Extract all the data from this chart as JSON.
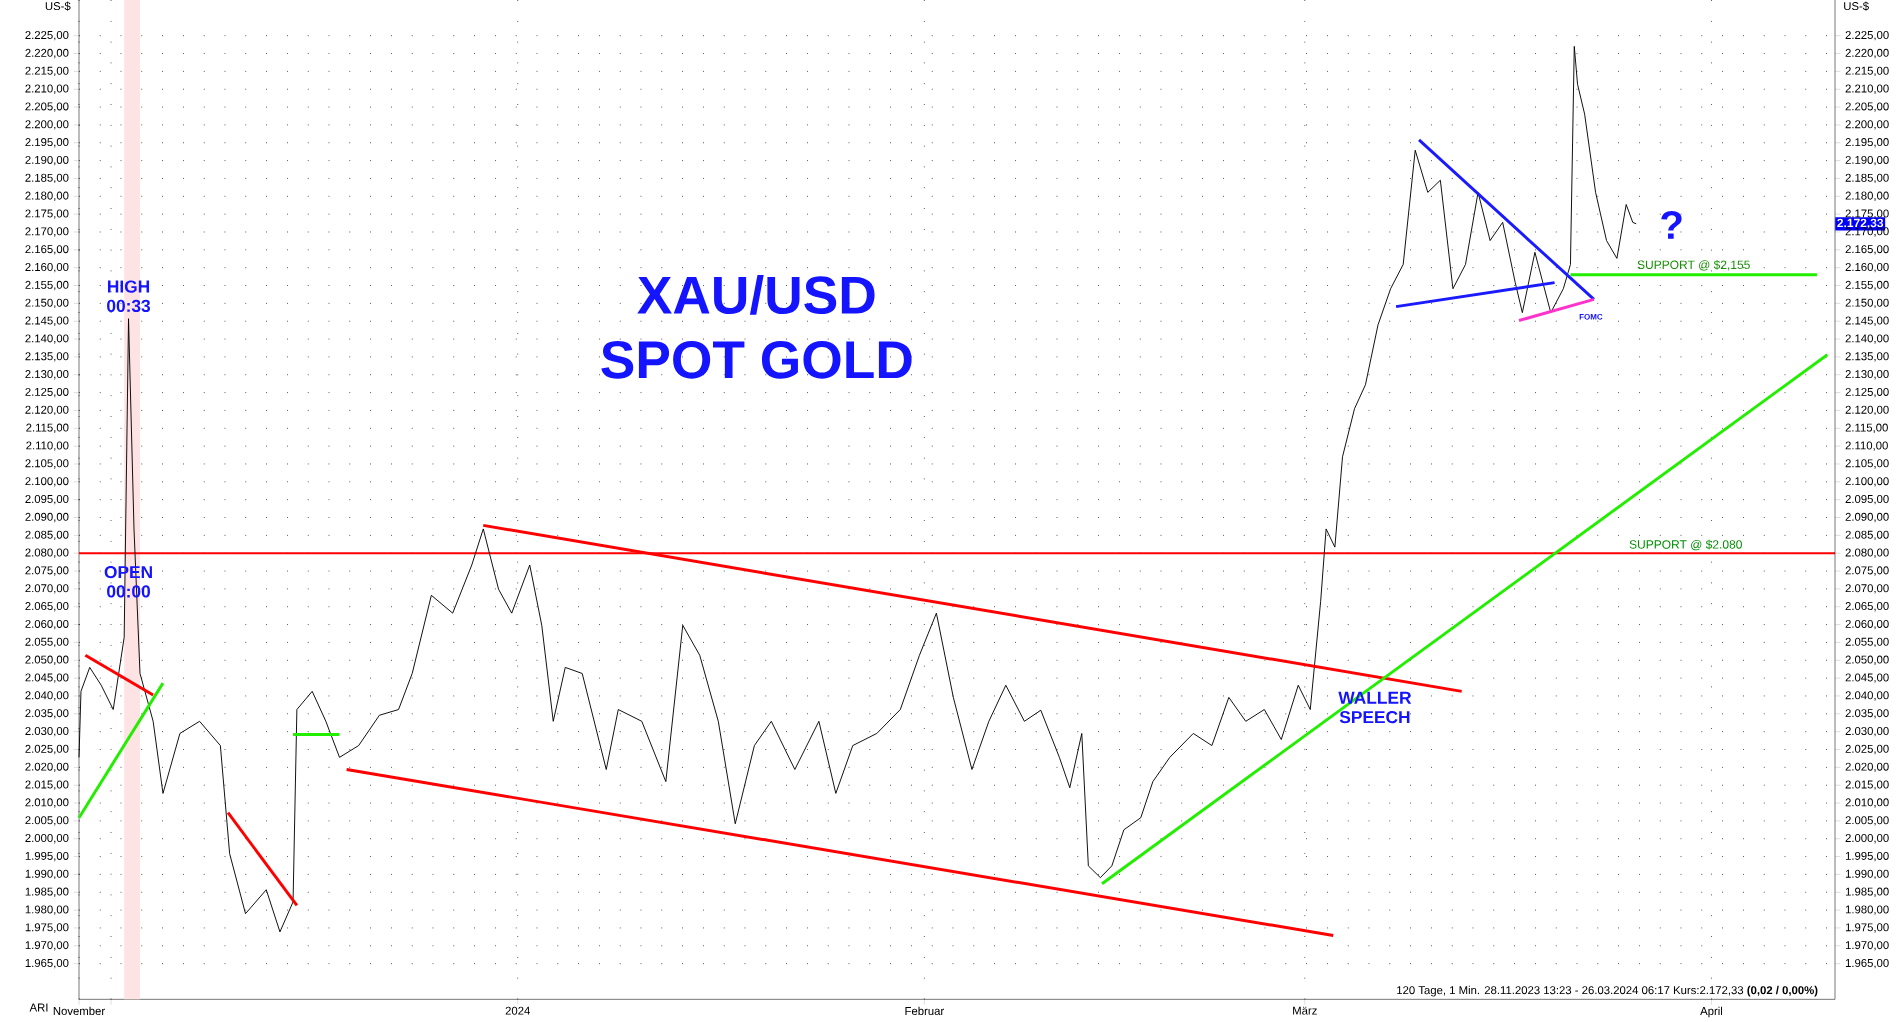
{
  "chart_data": {
    "type": "line",
    "title": "XAU/USD",
    "subtitle": "SPOT GOLD",
    "ylabel": "US-$",
    "y2label": "US-$",
    "xlim": [
      "2023-11-28T13:23",
      "2024-04-10T10:00"
    ],
    "ylim": [
      1955,
      2235
    ],
    "y2lim": [
      1955,
      2235
    ],
    "xticks": [
      {
        "value": "2023-11-28T13:23",
        "label": "November"
      },
      {
        "value": "2023-12-01",
        "label": null
      },
      {
        "value": "2024-01-01",
        "label": "2024"
      },
      {
        "value": "2024-02-01",
        "label": "Februar"
      },
      {
        "value": "2024-03-01",
        "label": "März"
      },
      {
        "value": "2024-04-01",
        "label": "April"
      }
    ],
    "yticks": [
      {
        "value": 1965,
        "label": "1.965,00"
      },
      {
        "value": 1970,
        "label": "1.970,00"
      },
      {
        "value": 1975,
        "label": "1.975,00"
      },
      {
        "value": 1980,
        "label": "1.980,00"
      },
      {
        "value": 1985,
        "label": "1.985,00"
      },
      {
        "value": 1990,
        "label": "1.990,00"
      },
      {
        "value": 1995,
        "label": "1.995,00"
      },
      {
        "value": 2000,
        "label": "2.000,00"
      },
      {
        "value": 2005,
        "label": "2.005,00"
      },
      {
        "value": 2010,
        "label": "2.010,00"
      },
      {
        "value": 2015,
        "label": "2.015,00"
      },
      {
        "value": 2020,
        "label": "2.020,00"
      },
      {
        "value": 2025,
        "label": "2.025,00"
      },
      {
        "value": 2030,
        "label": "2.030,00"
      },
      {
        "value": 2035,
        "label": "2.035,00"
      },
      {
        "value": 2040,
        "label": "2.040,00"
      },
      {
        "value": 2045,
        "label": "2.045,00"
      },
      {
        "value": 2050,
        "label": "2.050,00"
      },
      {
        "value": 2055,
        "label": "2.055,00"
      },
      {
        "value": 2060,
        "label": "2.060,00"
      },
      {
        "value": 2065,
        "label": "2.065,00"
      },
      {
        "value": 2070,
        "label": "2.070,00"
      },
      {
        "value": 2075,
        "label": "2.075,00"
      },
      {
        "value": 2080,
        "label": "2.080,00"
      },
      {
        "value": 2085,
        "label": "2.085,00"
      },
      {
        "value": 2090,
        "label": "2.090,00"
      },
      {
        "value": 2095,
        "label": "2.095,00"
      },
      {
        "value": 2100,
        "label": "2.100,00"
      },
      {
        "value": 2105,
        "label": "2.105,00"
      },
      {
        "value": 2110,
        "label": "2.110,00"
      },
      {
        "value": 2115,
        "label": "2.115,00"
      },
      {
        "value": 2120,
        "label": "2.120,00"
      },
      {
        "value": 2125,
        "label": "2.125,00"
      },
      {
        "value": 2130,
        "label": "2.130,00"
      },
      {
        "value": 2135,
        "label": "2.135,00"
      },
      {
        "value": 2140,
        "label": "2.140,00"
      },
      {
        "value": 2145,
        "label": "2.145,00"
      },
      {
        "value": 2150,
        "label": "2.150,00"
      },
      {
        "value": 2155,
        "label": "2.155,00"
      },
      {
        "value": 2160,
        "label": "2.160,00"
      },
      {
        "value": 2165,
        "label": "2.165,00"
      },
      {
        "value": 2170,
        "label": "2.170,00"
      },
      {
        "value": 2175,
        "label": "2.175,00"
      },
      {
        "value": 2180,
        "label": "2.180,00"
      },
      {
        "value": 2185,
        "label": "2.185,00"
      },
      {
        "value": 2190,
        "label": "2.190,00"
      },
      {
        "value": 2195,
        "label": "2.195,00"
      },
      {
        "value": 2200,
        "label": "2.200,00"
      },
      {
        "value": 2205,
        "label": "2.205,00"
      },
      {
        "value": 2210,
        "label": "2.210,00"
      },
      {
        "value": 2215,
        "label": "2.215,00"
      },
      {
        "value": 2220,
        "label": "2.220,00"
      },
      {
        "value": 2225,
        "label": "2.225,00"
      }
    ],
    "y2ticks": [
      {
        "value": 1965,
        "label": "1.965,00"
      },
      {
        "value": 1970,
        "label": "1.970,00"
      },
      {
        "value": 1975,
        "label": "1.975,00"
      },
      {
        "value": 1980,
        "label": "1.980,00"
      },
      {
        "value": 1985,
        "label": "1.985,00"
      },
      {
        "value": 1990,
        "label": "1.990,00"
      },
      {
        "value": 1995,
        "label": "1.995,00"
      },
      {
        "value": 2000,
        "label": "2.000,00"
      },
      {
        "value": 2005,
        "label": "2.005,00"
      },
      {
        "value": 2010,
        "label": "2.010,00"
      },
      {
        "value": 2015,
        "label": "2.015,00"
      },
      {
        "value": 2020,
        "label": "2.020,00"
      },
      {
        "value": 2025,
        "label": "2.025,00"
      },
      {
        "value": 2030,
        "label": "2.030,00"
      },
      {
        "value": 2035,
        "label": "2.035,00"
      },
      {
        "value": 2040,
        "label": "2.040,00"
      },
      {
        "value": 2045,
        "label": "2.045,00"
      },
      {
        "value": 2050,
        "label": "2.050,00"
      },
      {
        "value": 2055,
        "label": "2.055,00"
      },
      {
        "value": 2060,
        "label": "2.060,00"
      },
      {
        "value": 2065,
        "label": "2.065,00"
      },
      {
        "value": 2070,
        "label": "2.070,00"
      },
      {
        "value": 2075,
        "label": "2.075,00"
      },
      {
        "value": 2080,
        "label": "2.080,00"
      },
      {
        "value": 2085,
        "label": "2.085,00"
      },
      {
        "value": 2090,
        "label": "2.090,00"
      },
      {
        "value": 2095,
        "label": "2.095,00"
      },
      {
        "value": 2100,
        "label": "2.100,00"
      },
      {
        "value": 2105,
        "label": "2.105,00"
      },
      {
        "value": 2110,
        "label": "2.110,00"
      },
      {
        "value": 2115,
        "label": "2.115,00"
      },
      {
        "value": 2120,
        "label": "2.120,00"
      },
      {
        "value": 2125,
        "label": "2.125,00"
      },
      {
        "value": 2130,
        "label": "2.130,00"
      },
      {
        "value": 2135,
        "label": "2.135,00"
      },
      {
        "value": 2140,
        "label": "2.140,00"
      },
      {
        "value": 2145,
        "label": "2.145,00"
      },
      {
        "value": 2150,
        "label": "2.150,00"
      },
      {
        "value": 2155,
        "label": "2.155,00"
      },
      {
        "value": 2160,
        "label": "2.160,00"
      },
      {
        "value": 2165,
        "label": "2.165,00"
      },
      {
        "value": 2170,
        "label": "2.170,00"
      },
      {
        "value": 2175,
        "label": "2.175,00"
      },
      {
        "value": 2180,
        "label": "2.180,00"
      },
      {
        "value": 2185,
        "label": "2.185,00"
      },
      {
        "value": 2190,
        "label": "2.190,00"
      },
      {
        "value": 2195,
        "label": "2.195,00"
      },
      {
        "value": 2200,
        "label": "2.200,00"
      },
      {
        "value": 2205,
        "label": "2.205,00"
      },
      {
        "value": 2210,
        "label": "2.210,00"
      },
      {
        "value": 2215,
        "label": "2.215,00"
      },
      {
        "value": 2220,
        "label": "2.220,00"
      },
      {
        "value": 2225,
        "label": "2.225,00"
      }
    ],
    "grid": true,
    "series": [
      {
        "color": "#000000",
        "x": [
          "2023-11-28T13:23",
          "2023-11-28T17:00",
          "2023-11-29T09:00",
          "2023-11-30T06:00",
          "2023-12-01T04:00",
          "2023-12-02T00:00",
          "2023-12-02T08:00",
          "2023-12-02T18:00",
          "2023-12-03T05:00",
          "2023-12-04T05:00",
          "2023-12-04T23:00",
          "2023-12-06T06:00",
          "2023-12-07T18:00",
          "2023-12-09T08:00",
          "2023-12-10T01:00",
          "2023-12-11T06:00",
          "2023-12-12T20:00",
          "2023-12-13T21:00",
          "2023-12-14T21:00",
          "2023-12-15T04:00",
          "2023-12-16T08:00",
          "2023-12-17T09:00",
          "2023-12-18T10:00",
          "2023-12-19T21:00",
          "2023-12-21T11:00",
          "2023-12-22T22:00",
          "2023-12-23T23:00",
          "2023-12-25T10:00",
          "2023-12-27T01:00",
          "2023-12-28T12:00",
          "2023-12-29T09:00",
          "2023-12-30T13:00",
          "2023-12-31T13:00",
          "2024-01-01T22:00",
          "2024-01-02T20:00",
          "2024-01-03T17:00",
          "2024-01-04T15:00",
          "2024-01-05T22:00",
          "2024-01-07T18:00",
          "2024-01-08T16:00",
          "2024-01-10T11:00",
          "2024-01-12T07:00",
          "2024-01-13T14:00",
          "2024-01-14T21:00",
          "2024-01-16T07:00",
          "2024-01-17T14:00",
          "2024-01-19T01:00",
          "2024-01-20T08:00",
          "2024-01-22T03:00",
          "2024-01-23T23:00",
          "2024-01-25T06:00",
          "2024-01-26T13:00",
          "2024-01-28T09:00",
          "2024-01-30T04:00",
          "2024-01-31T15:00",
          "2024-02-01T22:00",
          "2024-02-03T05:00",
          "2024-02-04T15:00",
          "2024-02-05T22:00",
          "2024-02-07T05:00",
          "2024-02-08T15:00",
          "2024-02-09T21:00",
          "2024-02-11T07:00",
          "2024-02-12T02:00",
          "2024-02-13T00:00",
          "2024-02-13T12:00",
          "2024-02-14T10:00",
          "2024-02-15T07:00",
          "2024-02-16T05:00",
          "2024-02-17T12:00",
          "2024-02-18T10:00",
          "2024-02-19T17:00",
          "2024-02-21T12:00",
          "2024-02-22T22:00",
          "2024-02-24T05:00",
          "2024-02-25T12:00",
          "2024-02-26T22:00",
          "2024-02-28T05:00",
          "2024-02-29T12:00",
          "2024-03-01T10:00",
          "2024-03-02T05:00",
          "2024-03-02T15:00",
          "2024-03-03T07:00",
          "2024-03-03T21:00",
          "2024-03-04T19:00",
          "2024-03-05T15:00",
          "2024-03-06T14:00",
          "2024-03-07T13:00",
          "2024-03-08T12:00",
          "2024-03-09T10:00",
          "2024-03-10T09:00",
          "2024-03-11T08:00",
          "2024-03-12T07:00",
          "2024-03-13T06:00",
          "2024-03-14T05:00",
          "2024-03-15T03:00",
          "2024-03-16T02:00",
          "2024-03-17T01:00",
          "2024-03-17T14:00",
          "2024-03-18T13:00",
          "2024-03-19T18:00",
          "2024-03-20T17:00",
          "2024-03-21T06:00",
          "2024-03-21T13:00",
          "2024-03-21T19:00",
          "2024-03-22T08:00",
          "2024-03-23T04:00",
          "2024-03-24T00:00",
          "2024-03-24T19:00",
          "2024-03-25T12:00",
          "2024-03-26T00:00",
          "2024-03-26T06:17"
        ],
        "values": [
          2022.8,
          2041.3,
          2048,
          2043,
          2036.2,
          2056.4,
          2145.7,
          2086.8,
          2046.3,
          2032.9,
          2012.7,
          2029.5,
          2032.9,
          2026.1,
          1995.8,
          1979,
          1985.7,
          1973.9,
          1982.3,
          2036.2,
          2041.3,
          2032.9,
          2022.8,
          2026.1,
          2034.6,
          2036.2,
          2046.3,
          2068.2,
          2063.2,
          2076.7,
          2086.8,
          2069.9,
          2063.2,
          2076.7,
          2059.8,
          2032.9,
          2048,
          2046.3,
          2019.4,
          2036.2,
          2032.9,
          2016,
          2059.8,
          2051.4,
          2032.9,
          2004.2,
          2026.1,
          2032.9,
          2019.4,
          2032.9,
          2012.7,
          2026.1,
          2029.5,
          2036.2,
          2051.4,
          2063.2,
          2039.6,
          2019.4,
          2032.9,
          2043,
          2032.9,
          2036,
          2022.8,
          2014.3,
          2029.5,
          1992.4,
          1989.1,
          1992.4,
          2002.5,
          2005.9,
          2016,
          2022.8,
          2029.5,
          2026.1,
          2039.6,
          2032.9,
          2036.2,
          2027.8,
          2043,
          2036.2,
          2066.5,
          2086.8,
          2081.7,
          2107,
          2120.5,
          2127.2,
          2144,
          2154.1,
          2160.9,
          2192.9,
          2181.1,
          2184.5,
          2154.1,
          2160.9,
          2181.1,
          2167.6,
          2172.7,
          2155.8,
          2147.4,
          2164.3,
          2147.4,
          2154.1,
          2160.9,
          2222,
          2211.4,
          2203,
          2181.1,
          2167.6,
          2162.6,
          2177.7,
          2172.7,
          2172.3
        ]
      },
      {
        "color": "#ff0000",
        "x": [
          "2023-12-29T09:00",
          "2024-03-12T23:00"
        ],
        "values": [
          2087.8,
          2041.3
        ]
      },
      {
        "color": "#ff0000",
        "x": [
          "2023-12-18T23:00",
          "2024-03-03T04:00"
        ],
        "values": [
          2019.4,
          1972.9
        ]
      },
      {
        "color": "#ff0000",
        "x": [
          "2023-11-29T01:00",
          "2023-12-04T05:00"
        ],
        "values": [
          2051.4,
          2040.3
        ]
      },
      {
        "color": "#ff0000",
        "x": [
          "2023-12-09T22:00",
          "2023-12-15T04:00"
        ],
        "values": [
          2007.3,
          1981.3
        ]
      },
      {
        "color": "#22ee00",
        "x": [
          "2023-11-28T13:23",
          "2023-12-04T23:00"
        ],
        "values": [
          2005.9,
          2043.6
        ]
      },
      {
        "color": "#22ee00",
        "x": [
          "2023-12-14T21:00",
          "2023-12-18T10:00"
        ],
        "values": [
          2029.2,
          2029.2
        ]
      },
      {
        "color": "#22ee00",
        "x": [
          "2024-02-14T13:00",
          "2024-04-09T20:00"
        ],
        "values": [
          1987.4,
          2135.6
        ]
      },
      {
        "color": "#1a1aff",
        "x": [
          "2024-03-09T17:00",
          "2024-03-23T01:00"
        ],
        "values": [
          2195.8,
          2151.1
        ]
      },
      {
        "color": "#1a1aff",
        "x": [
          "2024-03-07T23:00",
          "2024-03-20T01:00"
        ],
        "values": [
          2149.1,
          2155.8
        ]
      },
      {
        "color": "#ff33cc",
        "x": [
          "2024-03-17T08:00",
          "2024-03-23T01:00"
        ],
        "values": [
          2145.2,
          2151.1
        ]
      },
      {
        "name": "SUPPORT @ $2,155",
        "color": "#22ee00",
        "x": [
          "2024-03-21T06:00",
          "2024-04-09T01:00"
        ],
        "values": [
          2158,
          2158
        ]
      }
    ],
    "ref_lines": [
      {
        "axis": "y",
        "value": 2080,
        "label": "SUPPORT @ $2.080",
        "color": "#ff0000"
      }
    ],
    "bands": [
      {
        "axis": "x",
        "from": "2023-12-02T00:00",
        "to": "2023-12-03T05:00",
        "color": "#fde3e3"
      }
    ],
    "annotations": [
      {
        "text": "HIGH 00:33",
        "x": "2023-12-02T08:00",
        "y": 2152
      },
      {
        "text": "OPEN 00:00",
        "x": "2023-12-02T08:00",
        "y": 2072
      },
      "WALLER SPEECH",
      "FOMC",
      "?",
      "2.172,33",
      "120 Tage, 1 Min. 28.11.2023 13:23 - 26.03.2024 06:17  Kurs:2.172,33 **(0,02 / 0,00%)**",
      "ARI"
    ]
  }
}
